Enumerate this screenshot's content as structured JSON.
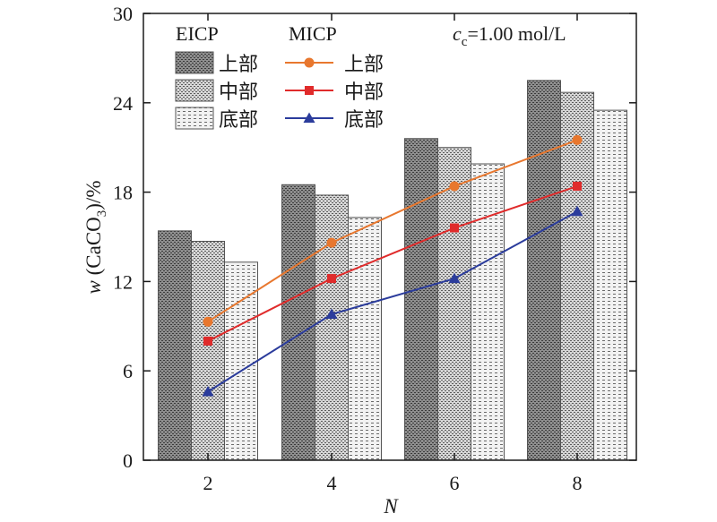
{
  "chart_data": {
    "type": "bar",
    "categories": [
      "2",
      "4",
      "6",
      "8"
    ],
    "ylim": [
      0,
      30
    ],
    "yticks": [
      "0",
      "6",
      "12",
      "18",
      "24",
      "30"
    ],
    "xlabel": "N",
    "ylabel_parts": {
      "prefix": "w",
      "middle": " (CaCO",
      "sub": "3",
      "suffix": ")/%"
    },
    "annotation": {
      "lead": "c",
      "sub": "c",
      "rest": "=1.00 mol/L"
    },
    "legend_headers": {
      "bars": "EICP",
      "lines": "MICP"
    },
    "bar_series": [
      {
        "name": "上部",
        "pattern": "dense",
        "values": [
          15.4,
          18.5,
          21.6,
          25.5
        ]
      },
      {
        "name": "中部",
        "pattern": "medium",
        "values": [
          14.7,
          17.8,
          21.0,
          24.7
        ]
      },
      {
        "name": "底部",
        "pattern": "light",
        "values": [
          13.3,
          16.3,
          19.9,
          23.5
        ]
      }
    ],
    "line_series": [
      {
        "name": "上部",
        "marker": "circle",
        "color": "#e8772e",
        "values": [
          9.3,
          14.6,
          18.4,
          21.5
        ]
      },
      {
        "name": "中部",
        "marker": "square",
        "color": "#e02b2b",
        "values": [
          8.0,
          12.2,
          15.6,
          18.4
        ]
      },
      {
        "name": "底部",
        "marker": "triangle",
        "color": "#2b3c9c",
        "values": [
          4.6,
          9.8,
          12.2,
          16.7
        ]
      }
    ],
    "grid": false,
    "legend_position": "top-left"
  }
}
